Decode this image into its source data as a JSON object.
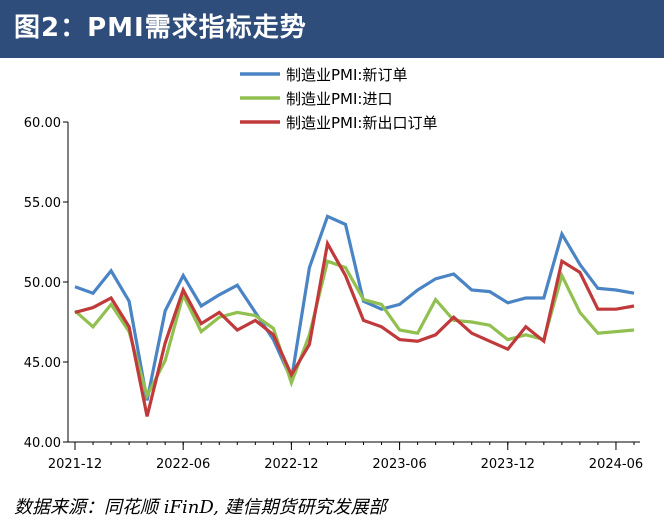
{
  "header": {
    "title": "图2：PMI需求指标走势"
  },
  "chart_data": {
    "type": "line",
    "title": "",
    "xlabel": "",
    "ylabel": "",
    "ylim": [
      40,
      60
    ],
    "yticks": [
      "60.00",
      "55.00",
      "50.00",
      "45.00",
      "40.00"
    ],
    "xticks": [
      "2021-12",
      "2022-06",
      "2022-12",
      "2023-06",
      "2023-12",
      "2024-06"
    ],
    "x": [
      "2021-12",
      "2022-01",
      "2022-02",
      "2022-03",
      "2022-04",
      "2022-05",
      "2022-06",
      "2022-07",
      "2022-08",
      "2022-09",
      "2022-10",
      "2022-11",
      "2022-12",
      "2023-01",
      "2023-02",
      "2023-03",
      "2023-04",
      "2023-05",
      "2023-06",
      "2023-07",
      "2023-08",
      "2023-09",
      "2023-10",
      "2023-11",
      "2023-12",
      "2024-01",
      "2024-02",
      "2024-03",
      "2024-04",
      "2024-05",
      "2024-06",
      "2024-07"
    ],
    "legend_position": "top",
    "series": [
      {
        "name": "制造业PMI:新订单",
        "color": "#4a84c4",
        "values": [
          49.7,
          49.3,
          50.7,
          48.8,
          42.6,
          48.2,
          50.4,
          48.5,
          49.2,
          49.8,
          48.1,
          46.4,
          43.9,
          50.9,
          54.1,
          53.6,
          48.8,
          48.3,
          48.6,
          49.5,
          50.2,
          50.5,
          49.5,
          49.4,
          48.7,
          49.0,
          49.0,
          53.0,
          51.1,
          49.6,
          49.5,
          49.3
        ]
      },
      {
        "name": "制造业PMI:进口",
        "color": "#92c050",
        "values": [
          48.2,
          47.2,
          48.6,
          46.9,
          42.9,
          45.1,
          49.2,
          46.9,
          47.8,
          48.1,
          47.9,
          47.1,
          43.7,
          46.7,
          51.3,
          50.9,
          48.9,
          48.6,
          47.0,
          46.8,
          48.9,
          47.6,
          47.5,
          47.3,
          46.4,
          46.7,
          46.4,
          50.4,
          48.1,
          46.8,
          46.9,
          47.0
        ]
      },
      {
        "name": "制造业PMI:新出口订单",
        "color": "#c0393b",
        "values": [
          48.1,
          48.4,
          49.0,
          47.2,
          41.6,
          46.2,
          49.5,
          47.4,
          48.1,
          47.0,
          47.6,
          46.7,
          44.2,
          46.1,
          52.4,
          50.4,
          47.6,
          47.2,
          46.4,
          46.3,
          46.7,
          47.8,
          46.8,
          46.3,
          45.8,
          47.2,
          46.3,
          51.3,
          50.6,
          48.3,
          48.3,
          48.5
        ]
      }
    ]
  },
  "footer": {
    "source": "数据来源：同花顺 iFinD, 建信期货研究发展部"
  }
}
